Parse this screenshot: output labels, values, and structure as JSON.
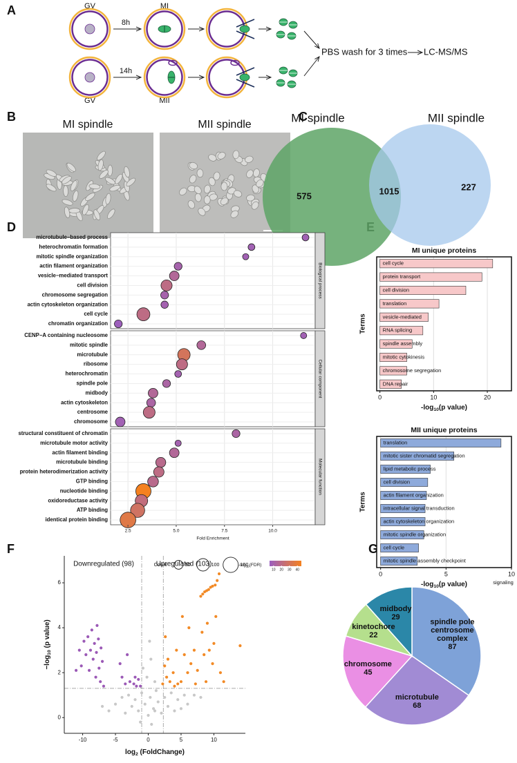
{
  "panel_labels": [
    "A",
    "B",
    "C",
    "D",
    "E",
    "F",
    "G"
  ],
  "panel_a": {
    "labels": [
      "GV",
      "8h",
      "MI",
      "14h",
      "MII",
      "GV"
    ],
    "wash": "PBS wash for 3 times",
    "output": "LC-MS/MS"
  },
  "panel_b": {
    "titles": [
      "MI spindle",
      "MII spindle"
    ]
  },
  "chart_data": [
    {
      "type": "venn",
      "sets": [
        {
          "name": "MI spindle",
          "color": "#5ea566"
        },
        {
          "name": "MII spindle",
          "color": "#a6c8ec"
        }
      ],
      "values": [
        575,
        1015,
        227
      ]
    },
    {
      "type": "dot",
      "xlabel": "Fold Enrichment",
      "xlim": [
        1.6,
        12.2
      ],
      "xticks": [
        2.5,
        {
          "value": 5,
          "label": "5.0"
        },
        7.5,
        {
          "value": 10,
          "label": "10.0"
        }
      ],
      "colors": [
        "#9b5fc0",
        "#f5811f"
      ],
      "colorlim": [
        5,
        45
      ],
      "size_legend": {
        "title": "Count",
        "values": [
          50,
          100,
          150
        ]
      },
      "color_legend": {
        "title": [
          "-log",
          "10",
          "(FDR)"
        ],
        "ticks": [
          10,
          20,
          30,
          40
        ]
      },
      "facets": [
        {
          "name": "Biological process",
          "categories": [
            "microtubule−based process",
            "heterochromatin formation",
            "mitotic spindle organization",
            "actin filament organization",
            "vesicle−mediated transport",
            "cell division",
            "chromosome segregation",
            "actin cytoskeleton organization",
            "cell cycle",
            "chromatin organization"
          ],
          "values": [
            11.7,
            8.9,
            8.6,
            5.1,
            4.9,
            4.5,
            4.4,
            4.4,
            3.3,
            2.0
          ],
          "counts": [
            30,
            30,
            25,
            40,
            60,
            80,
            40,
            35,
            110,
            40
          ],
          "fdr": [
            8,
            8,
            8,
            10,
            15,
            20,
            10,
            9,
            20,
            6
          ]
        },
        {
          "name": "Cellular component",
          "categories": [
            "CENP−A containing nucleosome",
            "mitotic spindle",
            "microtubule",
            "ribosome",
            "heterochromatin",
            "spindle pole",
            "midbody",
            "actin cytoskeleton",
            "centrosome",
            "chromosome"
          ],
          "values": [
            11.6,
            6.3,
            5.4,
            5.3,
            5.1,
            4.5,
            3.8,
            3.7,
            3.6,
            2.1
          ],
          "counts": [
            25,
            50,
            100,
            80,
            30,
            40,
            60,
            50,
            90,
            60
          ],
          "fdr": [
            8,
            15,
            30,
            20,
            9,
            12,
            15,
            12,
            20,
            8
          ]
        },
        {
          "name": "Molecular function",
          "categories": [
            "structural constituent of chromatin",
            "microtubule motor activity",
            "actin filament binding",
            "microtubule binding",
            "protein heterodimerization activity",
            "GTP binding",
            "nucleotide binding",
            "oxidoreductase activity",
            "ATP binding",
            "identical protein binding"
          ],
          "values": [
            8.1,
            5.1,
            4.9,
            4.2,
            4.1,
            3.8,
            3.3,
            3.2,
            3.0,
            2.5
          ],
          "counts": [
            40,
            25,
            60,
            65,
            70,
            75,
            150,
            100,
            130,
            160
          ],
          "fdr": [
            12,
            9,
            15,
            18,
            20,
            18,
            45,
            22,
            28,
            35
          ]
        }
      ]
    },
    {
      "type": "bar",
      "orientation": "horizontal",
      "title": "MI unique proteins",
      "ylabel": "Terms",
      "xlabel": [
        "-log",
        "10",
        "(p value)"
      ],
      "categories": [
        "cell cycle",
        "protein transport",
        "cell division",
        "translation",
        "vesicle-mediated",
        "RNA splicing",
        "spindle assembly",
        "mitotic cytokinesis",
        "chromosome segregation",
        "DNA repair"
      ],
      "values": [
        21,
        19,
        16,
        11,
        9,
        8,
        6,
        5,
        5,
        4
      ],
      "color": "#f7c8c9",
      "xlim": [
        -0.6,
        24.5
      ],
      "xticks": [
        0,
        10,
        20
      ],
      "grid": true
    },
    {
      "type": "bar",
      "orientation": "horizontal",
      "title": "MII unique proteins",
      "ylabel": "Terms",
      "xlabel": [
        "-log",
        "10",
        "(p value)"
      ],
      "categories": [
        "translation",
        "mitotic sister chromatid segregation",
        "lipid metabolic process",
        "cell division",
        "actin filament organization",
        "intracellular signal transduction",
        "actin cytoskeleton organization",
        "mitotic spindle organization",
        "cell cycle",
        "mitotic spindle assembly checkpoint"
      ],
      "values": [
        9.2,
        5.6,
        3.8,
        3.6,
        3.5,
        3.4,
        3.4,
        3.3,
        2.9,
        2.8
      ],
      "color": "#8eaadb",
      "xlim": [
        -0.3,
        10
      ],
      "xticks": [
        0,
        5,
        10
      ],
      "grid": true,
      "annotations": [
        "signaling"
      ]
    },
    {
      "type": "scatter",
      "xlabel": [
        "log",
        "2",
        " (FoldChange)"
      ],
      "ylabel": [
        "−log",
        "10",
        " (p value)"
      ],
      "annotations": [
        "Downregulated (98)",
        "Upregulated (103)"
      ],
      "xlim": [
        -12.8,
        14.8
      ],
      "ylim": [
        -0.7,
        7.2
      ],
      "xticks": [
        -10,
        -5,
        0,
        5,
        10
      ],
      "yticks": [
        0,
        2,
        4,
        6
      ],
      "vlines": [
        -1,
        2.3
      ],
      "hline": 1.3,
      "series": [
        {
          "color": "#c8c8c8",
          "x": [
            -6,
            -5,
            -4,
            -3.5,
            -3,
            -2.5,
            -2,
            -1.5,
            -1,
            -0.5,
            0,
            0.3,
            0.8,
            1.2,
            1.5,
            2,
            2.5,
            3,
            3.5,
            4,
            4.5,
            5,
            5.5,
            6,
            7,
            8,
            -7,
            -1.2,
            0.5,
            1,
            -0.2,
            0.4,
            -0.8,
            0.2,
            1
          ],
          "y": [
            0.3,
            0.6,
            0.9,
            0.2,
            1.0,
            0.5,
            0.8,
            0.3,
            1.1,
            0.6,
            0.1,
            0.9,
            0.4,
            1.2,
            0.7,
            0.2,
            0.9,
            0.5,
            1.1,
            0.3,
            0.8,
            0.4,
            1.0,
            0.6,
            1.0,
            0.9,
            0.5,
            -0.2,
            -0.3,
            0.3,
            1.8,
            2.6,
            2.2,
            3.4,
            1.6
          ]
        },
        {
          "color": "#9b59b6",
          "x": [
            -10.2,
            -9.8,
            -9.5,
            -9.2,
            -9,
            -8.8,
            -8.6,
            -8.4,
            -8.2,
            -8,
            -7.9,
            -7.8,
            -7.6,
            -7.5,
            -7.3,
            -7.2,
            -7,
            -6.8,
            -4.3,
            -4,
            -3.2,
            -2.8,
            -2.2,
            -1.8,
            -1.5,
            -1.2,
            -11,
            -10.5,
            -3.5,
            -2
          ],
          "y": [
            2.3,
            3.4,
            2.8,
            3.6,
            2.1,
            3.0,
            3.9,
            2.6,
            3.3,
            1.8,
            2.9,
            4.1,
            3.5,
            2.2,
            1.6,
            3.1,
            2.5,
            1.4,
            2.4,
            1.8,
            2.8,
            1.6,
            1.5,
            1.4,
            1.7,
            1.4,
            2.1,
            3.0,
            1.5,
            1.8
          ]
        },
        {
          "color": "#f28a26",
          "x": [
            2.2,
            2.5,
            2.8,
            3,
            3.3,
            3.8,
            4,
            4.5,
            5,
            5.5,
            6,
            6.5,
            7,
            7.2,
            7.5,
            8,
            8.3,
            8.6,
            8.9,
            9.2,
            9.5,
            9.8,
            10.2,
            10.5,
            10.8,
            8.2,
            8.5,
            9,
            9.3,
            9.8,
            10,
            10.3,
            11,
            11.5,
            14,
            6.2,
            5.2,
            4.3,
            2.6,
            8.8
          ],
          "y": [
            1.5,
            2.3,
            1.8,
            2.6,
            1.6,
            2.0,
            1.4,
            1.5,
            1.6,
            2.8,
            2.0,
            2.4,
            3.0,
            1.5,
            2.1,
            5.4,
            5.5,
            5.6,
            5.65,
            5.7,
            5.8,
            5.85,
            5.9,
            6.1,
            6.4,
            3.8,
            2.8,
            4.2,
            3.0,
            2.4,
            3.3,
            4.5,
            2.0,
            1.6,
            3.2,
            4.0,
            4.5,
            3.0,
            3.6,
            1.6
          ]
        }
      ]
    },
    {
      "type": "pie",
      "categories": [
        "spindle pole centrosome complex",
        "microtubule",
        "chromosome",
        "kinetochore",
        "midbody"
      ],
      "values": [
        87,
        68,
        45,
        22,
        29
      ],
      "colors": [
        "#7ea2d8",
        "#a18bd4",
        "#ea8fe4",
        "#b5df8d",
        "#2b87a8"
      ]
    }
  ]
}
